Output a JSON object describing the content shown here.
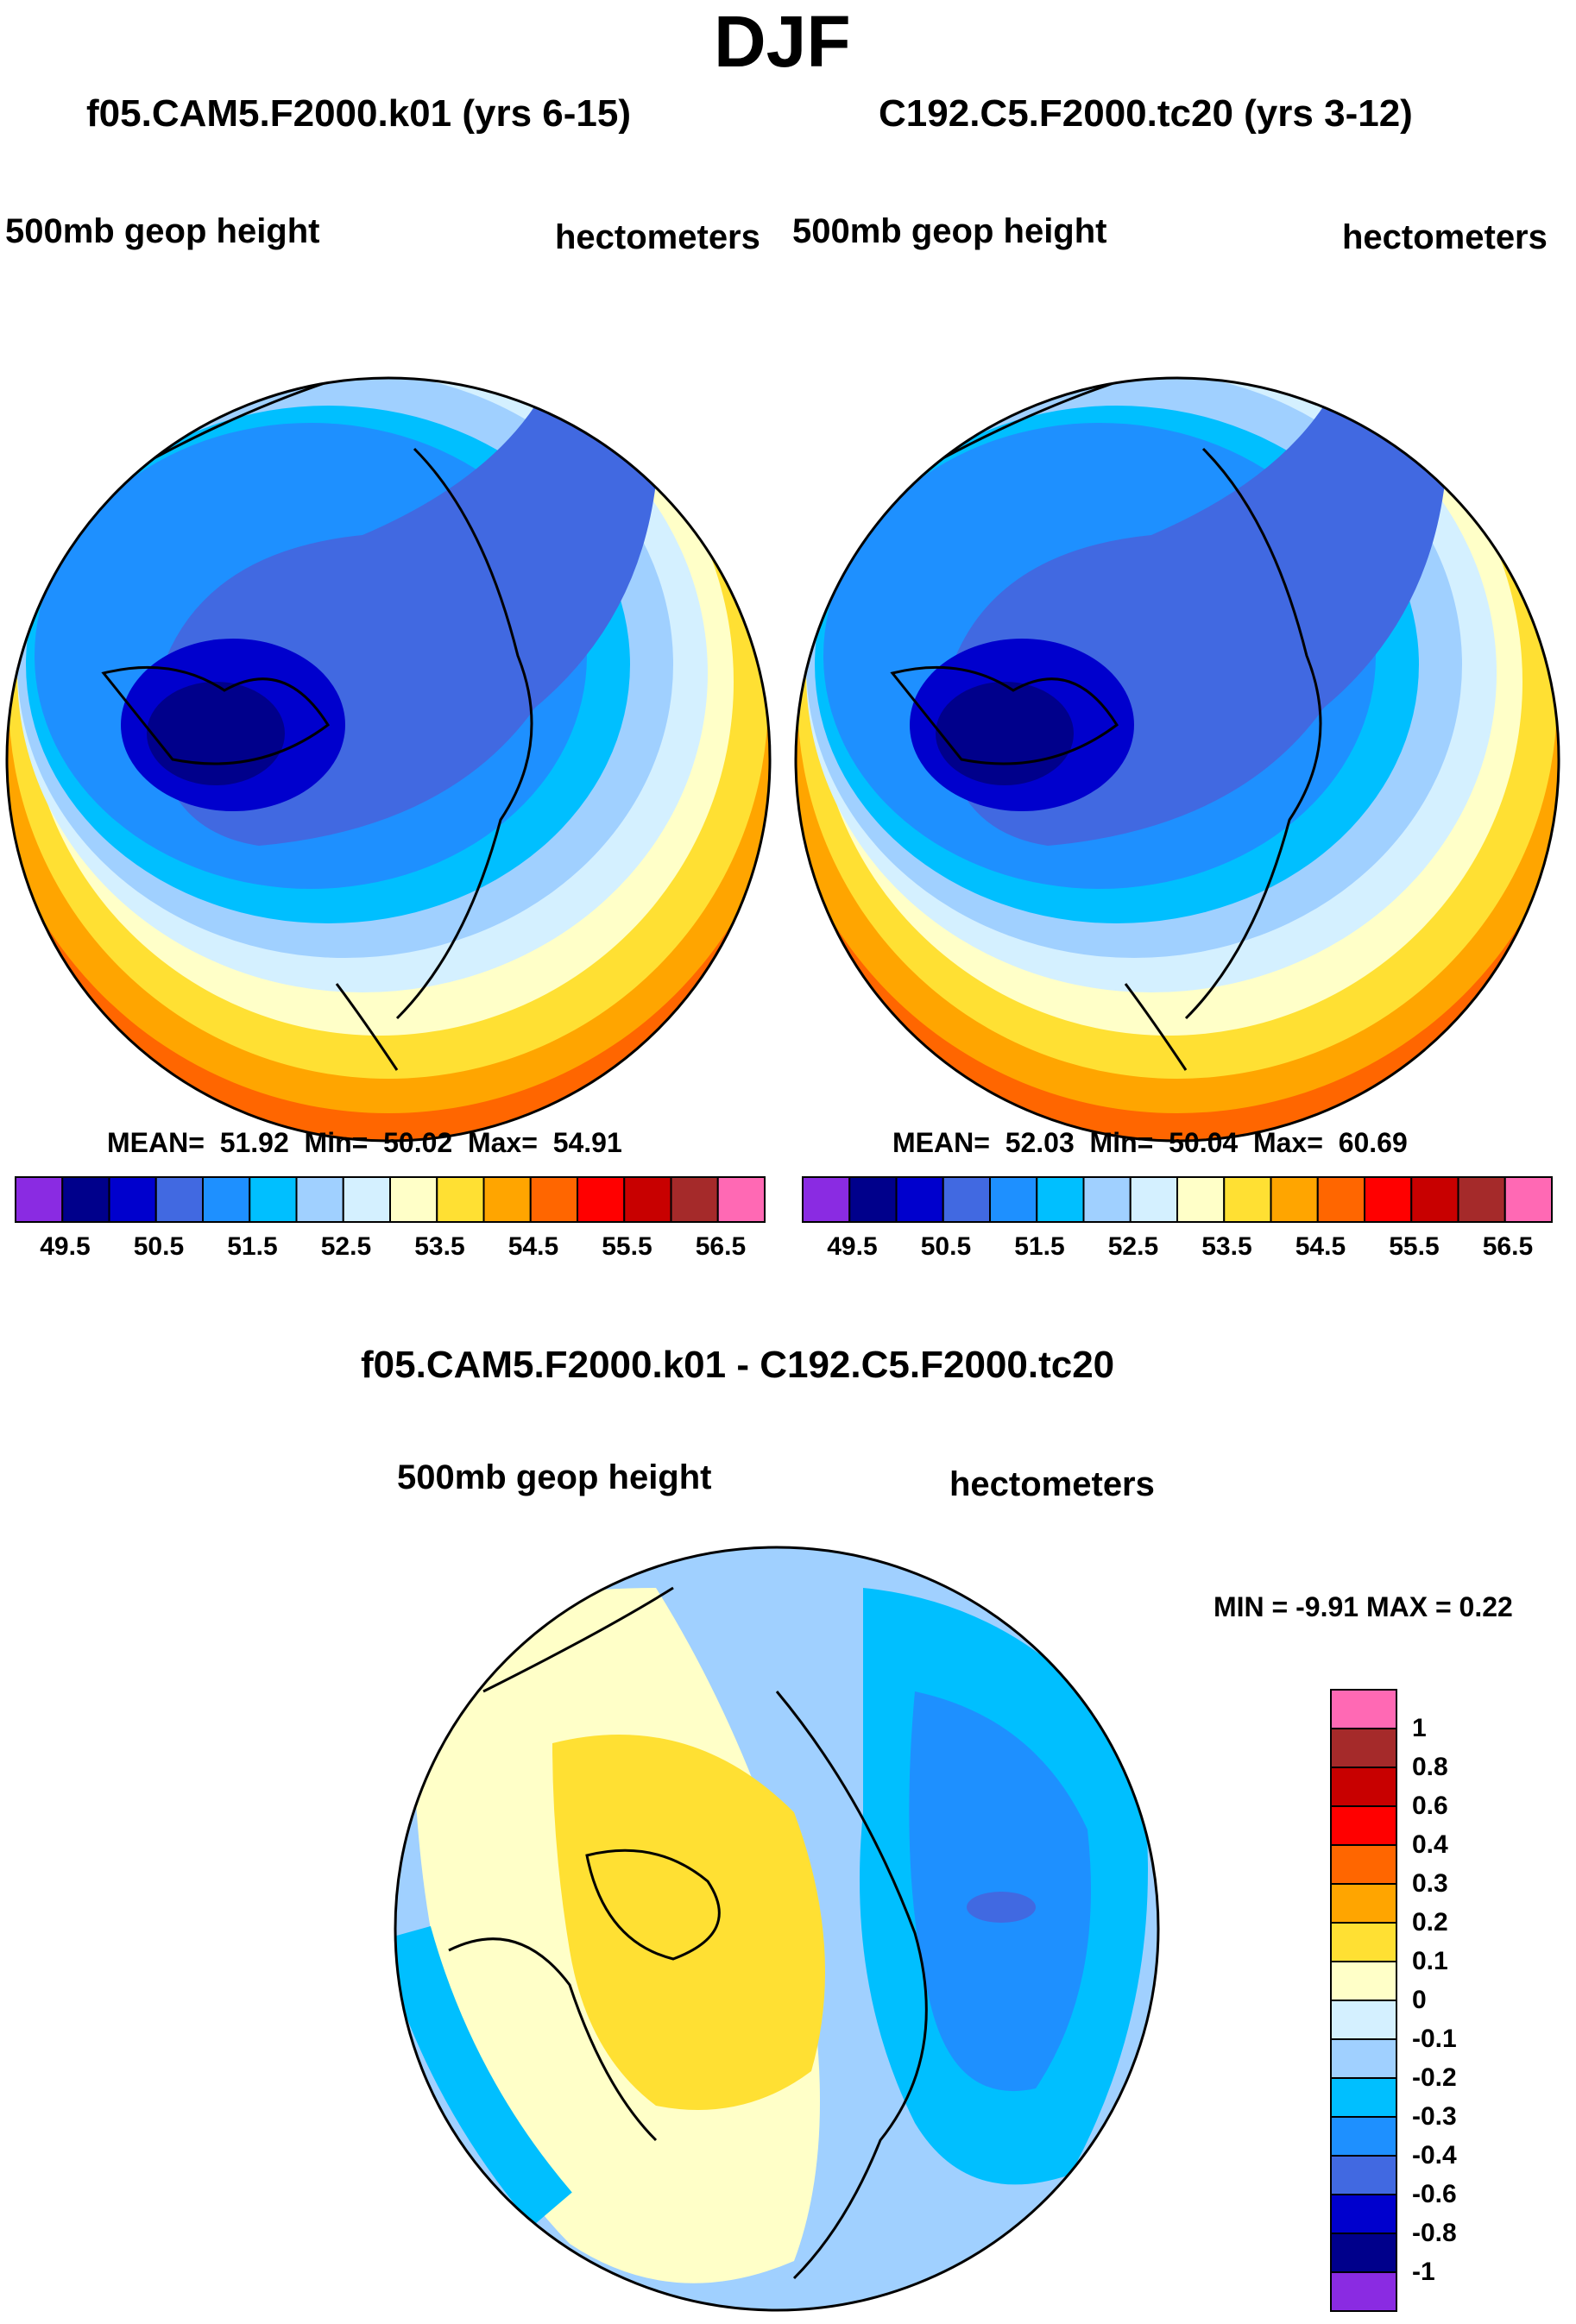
{
  "figure": {
    "season_title": "DJF"
  },
  "panels": [
    {
      "id": "left",
      "case_title": "f05.CAM5.F2000.k01 (yrs 6-15)",
      "variable": "500mb geop height",
      "units": "hectometers",
      "stats": {
        "mean_label": "MEAN=",
        "mean": "51.92",
        "min_label": "Min=",
        "min": "50.02",
        "max_label": "Max=",
        "max": "54.91"
      }
    },
    {
      "id": "right",
      "case_title": "C192.C5.F2000.tc20 (yrs 3-12)",
      "variable": "500mb geop height",
      "units": "hectometers",
      "stats": {
        "mean_label": "MEAN=",
        "mean": "52.03",
        "min_label": "Min=",
        "min": "50.04",
        "max_label": "Max=",
        "max": "60.69"
      }
    }
  ],
  "diff_panel": {
    "title": "f05.CAM5.F2000.k01 - C192.C5.F2000.tc20",
    "variable": "500mb geop height",
    "units": "hectometers",
    "minmax_text": "MIN =  -9.91 MAX =   0.22"
  },
  "colors": {
    "scale15": [
      "#8a2be2",
      "#00008b",
      "#0000cd",
      "#4169e1",
      "#1e90ff",
      "#00bfff",
      "#a0d0ff",
      "#d4f0ff",
      "#ffffc8",
      "#ffe033",
      "#ffa500",
      "#ff6600",
      "#ff0000",
      "#c80000",
      "#a52a2a",
      "#ff69b4"
    ],
    "diff16": [
      "#8a2be2",
      "#00008b",
      "#0000cd",
      "#4169e1",
      "#1e90ff",
      "#00bfff",
      "#a0d0ff",
      "#d4f0ff",
      "#ffffc8",
      "#ffe033",
      "#ffa500",
      "#ff6600",
      "#ff0000",
      "#c80000",
      "#a52a2a",
      "#ff69b4"
    ]
  },
  "chart_data": [
    {
      "type": "heatmap",
      "title": "f05.CAM5.F2000.k01 (yrs 6-15)",
      "subtitle": "500mb geop height",
      "units": "hectometers",
      "projection": "polar stereographic (north)",
      "levels": [
        49.5,
        50,
        50.5,
        51,
        51.5,
        52,
        52.5,
        53,
        53.5,
        54,
        54.5,
        55,
        55.5,
        56,
        56.5
      ],
      "tick_labels": [
        "49.5",
        "50.5",
        "51.5",
        "52.5",
        "53.5",
        "54.5",
        "55.5",
        "56.5"
      ],
      "mean": 51.92,
      "min": 50.02,
      "max": 54.91
    },
    {
      "type": "heatmap",
      "title": "C192.C5.F2000.tc20 (yrs 3-12)",
      "subtitle": "500mb geop height",
      "units": "hectometers",
      "projection": "polar stereographic (north)",
      "levels": [
        49.5,
        50,
        50.5,
        51,
        51.5,
        52,
        52.5,
        53,
        53.5,
        54,
        54.5,
        55,
        55.5,
        56,
        56.5
      ],
      "tick_labels": [
        "49.5",
        "50.5",
        "51.5",
        "52.5",
        "53.5",
        "54.5",
        "55.5",
        "56.5"
      ],
      "mean": 52.03,
      "min": 50.04,
      "max": 60.69
    },
    {
      "type": "heatmap",
      "title": "f05.CAM5.F2000.k01 - C192.C5.F2000.tc20",
      "subtitle": "500mb geop height",
      "units": "hectometers",
      "projection": "polar stereographic (north)",
      "levels": [
        -1,
        -0.8,
        -0.6,
        -0.4,
        -0.3,
        -0.2,
        -0.1,
        0,
        0.1,
        0.2,
        0.3,
        0.4,
        0.6,
        0.8,
        1
      ],
      "tick_labels": [
        "-1",
        "-0.8",
        "-0.6",
        "-0.4",
        "-0.3",
        "-0.2",
        "-0.1",
        "0",
        "0.1",
        "0.2",
        "0.3",
        "0.4",
        "0.6",
        "0.8",
        "1"
      ],
      "min": -9.91,
      "max": 0.22
    }
  ]
}
